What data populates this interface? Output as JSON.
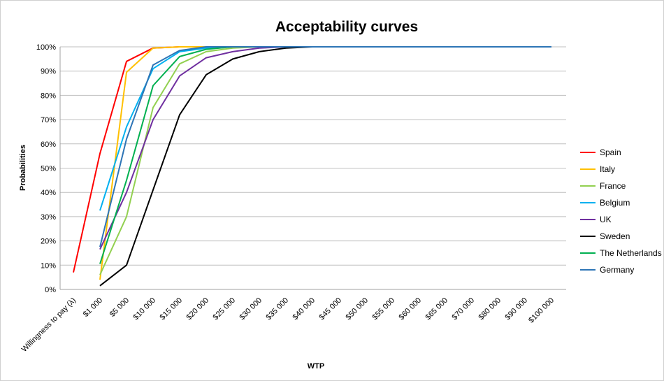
{
  "chart_data": {
    "type": "line",
    "title": "Acceptability curves",
    "xlabel": "WTP",
    "ylabel": "Probabilities",
    "ylim": [
      0,
      1
    ],
    "y_ticks": [
      "0%",
      "10%",
      "20%",
      "30%",
      "40%",
      "50%",
      "60%",
      "70%",
      "80%",
      "90%",
      "100%"
    ],
    "categories": [
      "Willingness to pay (λ)",
      "$1 000",
      "$5 000",
      "$10 000",
      "$15 000",
      "$20 000",
      "$25 000",
      "$30 000",
      "$35 000",
      "$40 000",
      "$45 000",
      "$50 000",
      "$55 000",
      "$60 000",
      "$65 000",
      "$70 000",
      "$80 000",
      "$90 000",
      "$100 000"
    ],
    "grid": true,
    "legend_position": "right",
    "series": [
      {
        "name": "Spain",
        "color": "#ff0000",
        "values": [
          0.07,
          0.56,
          0.94,
          0.995,
          1.0,
          1.0,
          1.0,
          1.0,
          1.0,
          1.0,
          1.0,
          1.0,
          1.0,
          1.0,
          1.0,
          1.0,
          1.0,
          1.0,
          1.0
        ]
      },
      {
        "name": "Italy",
        "color": "#ffc000",
        "values": [
          null,
          0.04,
          0.895,
          0.995,
          1.0,
          1.0,
          1.0,
          1.0,
          1.0,
          1.0,
          1.0,
          1.0,
          1.0,
          1.0,
          1.0,
          1.0,
          1.0,
          1.0,
          1.0
        ]
      },
      {
        "name": "France",
        "color": "#92d050",
        "values": [
          null,
          0.06,
          0.3,
          0.75,
          0.93,
          0.98,
          0.995,
          1.0,
          1.0,
          1.0,
          1.0,
          1.0,
          1.0,
          1.0,
          1.0,
          1.0,
          1.0,
          1.0,
          1.0
        ]
      },
      {
        "name": "Belgium",
        "color": "#00b0f0",
        "values": [
          null,
          0.325,
          0.67,
          0.91,
          0.98,
          0.995,
          1.0,
          1.0,
          1.0,
          1.0,
          1.0,
          1.0,
          1.0,
          1.0,
          1.0,
          1.0,
          1.0,
          1.0,
          1.0
        ]
      },
      {
        "name": "UK",
        "color": "#7030a0",
        "values": [
          null,
          0.165,
          0.4,
          0.7,
          0.88,
          0.955,
          0.98,
          0.995,
          1.0,
          1.0,
          1.0,
          1.0,
          1.0,
          1.0,
          1.0,
          1.0,
          1.0,
          1.0,
          1.0
        ]
      },
      {
        "name": "Sweden",
        "color": "#000000",
        "values": [
          null,
          0.015,
          0.1,
          0.41,
          0.72,
          0.885,
          0.95,
          0.98,
          0.995,
          1.0,
          1.0,
          1.0,
          1.0,
          1.0,
          1.0,
          1.0,
          1.0,
          1.0,
          1.0
        ]
      },
      {
        "name": "The Netherlands",
        "color": "#00b050",
        "values": [
          null,
          0.105,
          0.45,
          0.84,
          0.96,
          0.99,
          1.0,
          1.0,
          1.0,
          1.0,
          1.0,
          1.0,
          1.0,
          1.0,
          1.0,
          1.0,
          1.0,
          1.0,
          1.0
        ]
      },
      {
        "name": "Germany",
        "color": "#2e75b6",
        "values": [
          null,
          0.175,
          0.62,
          0.925,
          0.985,
          1.0,
          1.0,
          1.0,
          1.0,
          1.0,
          1.0,
          1.0,
          1.0,
          1.0,
          1.0,
          1.0,
          1.0,
          1.0,
          1.0
        ]
      }
    ]
  }
}
